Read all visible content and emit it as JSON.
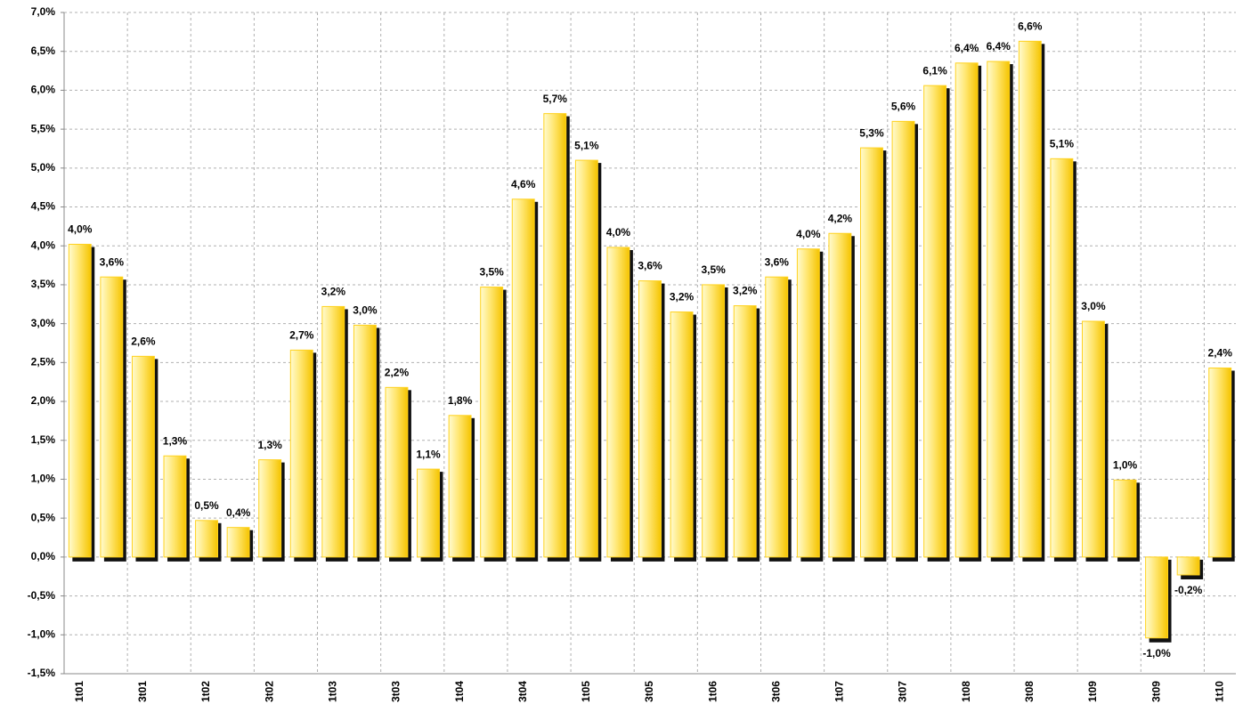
{
  "chart_data": {
    "type": "bar",
    "categories": [
      "1t01",
      null,
      "3t01",
      null,
      "1t02",
      null,
      "3t02",
      null,
      "1t03",
      null,
      "3t03",
      null,
      "1t04",
      null,
      "3t04",
      null,
      "1t05",
      null,
      "3t05",
      null,
      "1t06",
      null,
      "3t06",
      null,
      "1t07",
      null,
      "3t07",
      null,
      "1t08",
      null,
      "3t08",
      null,
      "1t09",
      null,
      "3t09",
      null,
      "1t10"
    ],
    "values": [
      4.02,
      3.6,
      2.58,
      1.3,
      0.47,
      0.38,
      1.25,
      2.66,
      3.22,
      2.98,
      2.18,
      1.13,
      1.82,
      3.47,
      4.6,
      5.7,
      5.1,
      3.98,
      3.55,
      3.15,
      3.5,
      3.23,
      3.6,
      3.96,
      4.16,
      5.26,
      5.6,
      6.06,
      6.35,
      6.37,
      6.63,
      5.12,
      3.03,
      0.99,
      -1.04,
      -0.23,
      2.43
    ],
    "value_labels": [
      "4,0%",
      "3,6%",
      "2,6%",
      "1,3%",
      "0,5%",
      "0,4%",
      "1,3%",
      "2,7%",
      "3,2%",
      "3,0%",
      "2,2%",
      "1,1%",
      "1,8%",
      "3,5%",
      "4,6%",
      "5,7%",
      "5,1%",
      "4,0%",
      "3,6%",
      "3,2%",
      "3,5%",
      "3,2%",
      "3,6%",
      "4,0%",
      "4,2%",
      "5,3%",
      "5,6%",
      "6,1%",
      "6,4%",
      "6,4%",
      "6,6%",
      "5,1%",
      "3,0%",
      "1,0%",
      "-1,0%",
      "-0,2%",
      "2,4%"
    ],
    "color": "#ffd21f",
    "ylim": [
      -1.5,
      7.0
    ],
    "yticks": [
      {
        "value": -1.5,
        "label": "-1,5%"
      },
      {
        "value": -1.0,
        "label": "-1,0%"
      },
      {
        "value": -0.5,
        "label": "-0,5%"
      },
      {
        "value": 0,
        "label": "0,0%"
      },
      {
        "value": 0.5,
        "label": "0,5%"
      },
      {
        "value": 1.0,
        "label": "1,0%"
      },
      {
        "value": 1.5,
        "label": "1,5%"
      },
      {
        "value": 2.0,
        "label": "2,0%"
      },
      {
        "value": 2.5,
        "label": "2,5%"
      },
      {
        "value": 3.0,
        "label": "3,0%"
      },
      {
        "value": 3.5,
        "label": "3,5%"
      },
      {
        "value": 4.0,
        "label": "4,0%"
      },
      {
        "value": 4.5,
        "label": "4,5%"
      },
      {
        "value": 5.0,
        "label": "5,0%"
      },
      {
        "value": 5.5,
        "label": "5,5%"
      },
      {
        "value": 6.0,
        "label": "6,0%"
      },
      {
        "value": 6.5,
        "label": "6,5%"
      },
      {
        "value": 7.0,
        "label": "7,0%"
      }
    ],
    "grid": true
  }
}
